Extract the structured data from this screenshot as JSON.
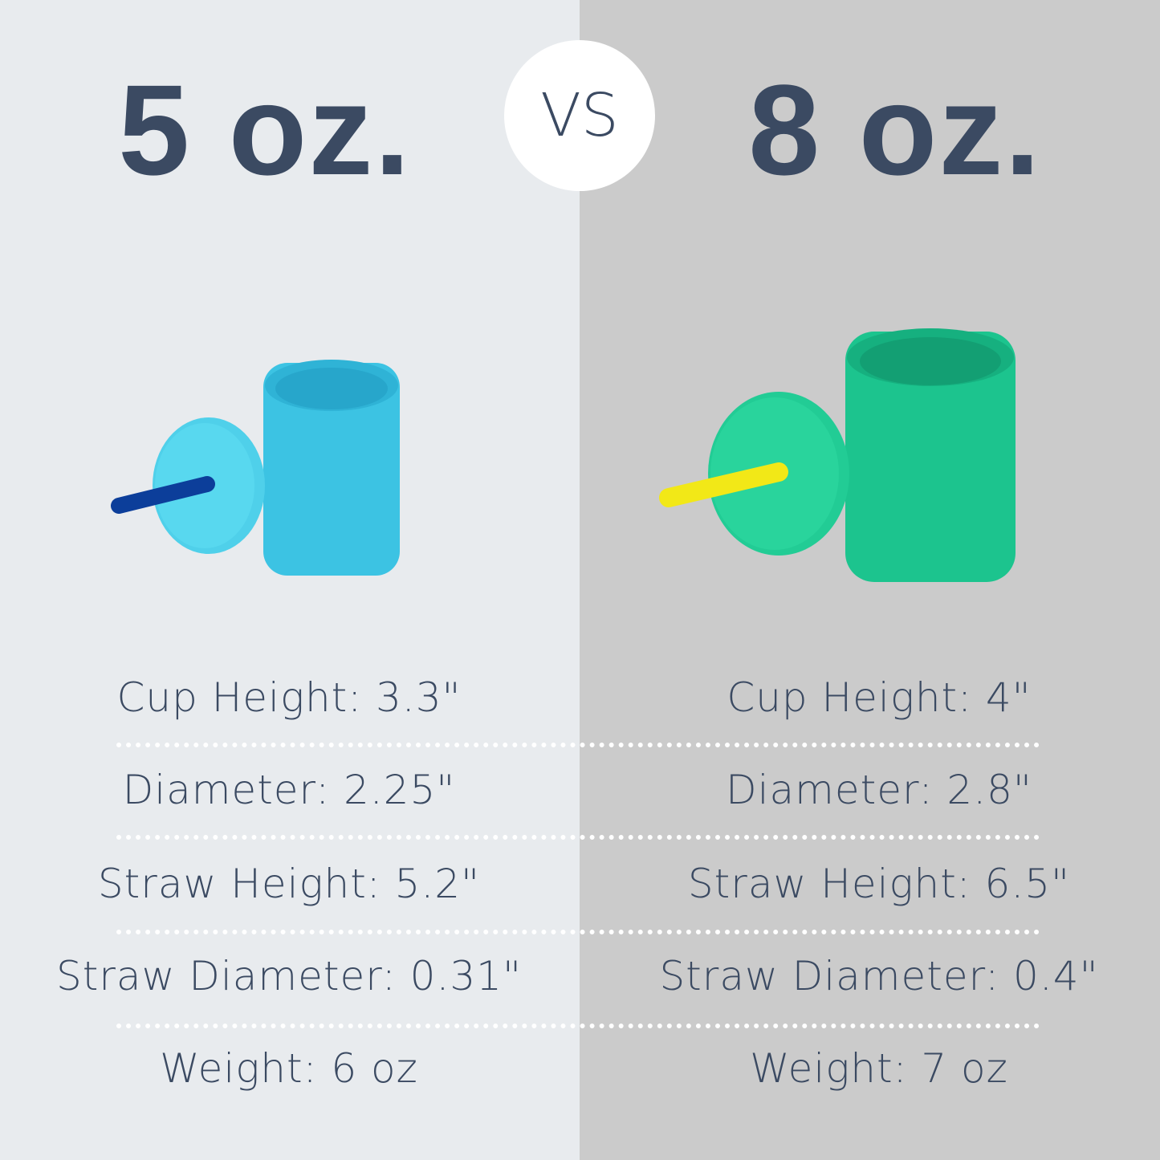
{
  "left": {
    "capacity": "5 oz.",
    "cup_color": "#3cc3e3",
    "lid_color": "#4fd0ea",
    "straw_color": "#0c3e9a",
    "specs": [
      "Cup Height: 3.3\"",
      "Diameter: 2.25\"",
      "Straw Height: 5.2\"",
      "Straw Diameter: 0.31\"",
      "Weight: 6 oz"
    ]
  },
  "right": {
    "capacity": "8 oz.",
    "cup_color": "#1cc48e",
    "lid_color": "#22cc95",
    "straw_color": "#f2e817",
    "specs": [
      "Cup Height: 4\"",
      "Diameter: 2.8\"",
      "Straw Height: 6.5\"",
      "Straw Diameter: 0.4\"",
      "Weight: 7 oz"
    ]
  },
  "vs_label": "VS",
  "colors": {
    "text": "#3b4a62",
    "left_bg": "#e8ebee",
    "right_bg": "#cbcbcb"
  }
}
